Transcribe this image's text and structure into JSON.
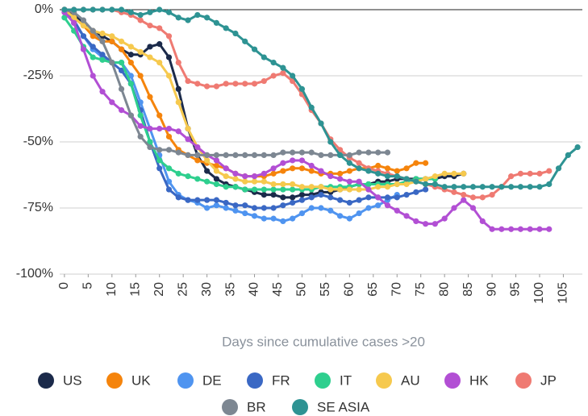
{
  "chart_data": {
    "type": "line",
    "x_label": "Days since cumulative cases >20",
    "x": [
      0,
      2,
      4,
      6,
      8,
      10,
      12,
      14,
      16,
      18,
      20,
      22,
      24,
      26,
      28,
      30,
      32,
      34,
      36,
      38,
      40,
      42,
      44,
      46,
      48,
      50,
      52,
      54,
      56,
      58,
      60,
      62,
      64,
      66,
      68,
      70,
      72,
      74,
      76,
      78,
      80,
      82,
      84,
      86,
      88,
      90,
      92,
      94,
      96,
      98,
      100,
      102,
      104,
      106,
      108
    ],
    "xlim": [
      -1,
      109
    ],
    "xticks": [
      0,
      5,
      10,
      15,
      20,
      25,
      30,
      35,
      40,
      45,
      50,
      55,
      60,
      65,
      70,
      75,
      80,
      85,
      90,
      95,
      100,
      105
    ],
    "ylim": [
      -100,
      0
    ],
    "yticks": [
      {
        "value": -100,
        "label": "-100%"
      },
      {
        "value": -75,
        "label": "-75%"
      },
      {
        "value": -50,
        "label": "-50%"
      },
      {
        "value": -25,
        "label": "-25%"
      },
      {
        "value": 0,
        "label": "0%"
      }
    ],
    "grid": true,
    "series": [
      {
        "name": "US",
        "color": "#1b2a4a",
        "values": [
          0,
          -2,
          -5,
          -8,
          -10,
          -12,
          -15,
          -17,
          -17,
          -14,
          -13,
          -18,
          -30,
          -45,
          -55,
          -61,
          -64,
          -66,
          -67,
          -68,
          -69,
          -70,
          -70,
          -71,
          -71,
          -70,
          -70,
          -69,
          -69,
          -68,
          -67,
          -66,
          -66,
          -65,
          -65,
          -64,
          -64,
          -64,
          -64,
          -64,
          -63,
          -63,
          -62,
          null,
          null,
          null,
          null,
          null,
          null,
          null,
          null,
          null,
          null,
          null,
          null
        ]
      },
      {
        "name": "UK",
        "color": "#f5840c",
        "values": [
          0,
          -3,
          -6,
          -10,
          -12,
          -12,
          -15,
          -20,
          -25,
          -33,
          -40,
          -48,
          -53,
          -55,
          -57,
          -58,
          -59,
          -60,
          -62,
          -63,
          -63,
          -63,
          -62,
          -61,
          -60,
          -60,
          -61,
          -62,
          -62,
          -62,
          -61,
          -60,
          -60,
          -59,
          -60,
          -61,
          -60,
          -58,
          -58,
          null,
          null,
          null,
          null,
          null,
          null,
          null,
          null,
          null,
          null,
          null,
          null,
          null,
          null,
          null,
          null
        ]
      },
      {
        "name": "DE",
        "color": "#4f94f0",
        "values": [
          0,
          -5,
          -10,
          -15,
          -18,
          -20,
          -20,
          -25,
          -35,
          -45,
          -55,
          -65,
          -70,
          -72,
          -73,
          -75,
          -74,
          -75,
          -76,
          -77,
          -78,
          -79,
          -79,
          -80,
          -79,
          -77,
          -75,
          -75,
          -76,
          -78,
          -79,
          -77,
          -75,
          -74,
          -72,
          -70,
          null,
          null,
          null,
          null,
          null,
          null,
          null,
          null,
          null,
          null,
          null,
          null,
          null,
          null,
          null,
          null,
          null,
          null,
          null
        ]
      },
      {
        "name": "FR",
        "color": "#3a68c4",
        "values": [
          0,
          -4,
          -10,
          -14,
          -17,
          -20,
          -23,
          -28,
          -38,
          -50,
          -60,
          -68,
          -71,
          -72,
          -72,
          -72,
          -72,
          -73,
          -74,
          -74,
          -75,
          -75,
          -75,
          -74,
          -73,
          -72,
          -71,
          -70,
          -71,
          -72,
          -73,
          -72,
          -71,
          -71,
          -71,
          -71,
          -70,
          -69,
          -68,
          null,
          null,
          null,
          null,
          null,
          null,
          null,
          null,
          null,
          null,
          null,
          null,
          null,
          null,
          null,
          null
        ]
      },
      {
        "name": "IT",
        "color": "#2ecf8e",
        "values": [
          -3,
          -8,
          -14,
          -18,
          -19,
          -20,
          -20,
          -28,
          -40,
          -50,
          -57,
          -60,
          -62,
          -63,
          -64,
          -65,
          -66,
          -67,
          -67,
          -68,
          -68,
          -68,
          -68,
          -68,
          -68,
          -68,
          -68,
          -67,
          -67,
          -67,
          -67,
          -66,
          -66,
          -66,
          -66,
          -66,
          -65,
          -64,
          -64,
          -64,
          null,
          null,
          null,
          null,
          null,
          null,
          null,
          null,
          null,
          null,
          null,
          null,
          null,
          null,
          null
        ]
      },
      {
        "name": "AU",
        "color": "#f6c94e",
        "values": [
          0,
          -3,
          -6,
          -8,
          -9,
          -10,
          -12,
          -14,
          -16,
          -18,
          -20,
          -25,
          -35,
          -45,
          -52,
          -57,
          -61,
          -63,
          -64,
          -65,
          -65,
          -65,
          -66,
          -66,
          -66,
          -67,
          -67,
          -67,
          -68,
          -68,
          -68,
          -68,
          -68,
          -67,
          -67,
          -66,
          -66,
          -65,
          -64,
          -63,
          -62,
          -62,
          -62,
          null,
          null,
          null,
          null,
          null,
          null,
          null,
          null,
          null,
          null,
          null,
          null
        ]
      },
      {
        "name": "HK",
        "color": "#b24fd4",
        "values": [
          -1,
          -5,
          -15,
          -25,
          -31,
          -35,
          -38,
          -40,
          -44,
          -45,
          -45,
          -45,
          -46,
          -49,
          -52,
          -55,
          -57,
          -60,
          -62,
          -63,
          -63,
          -62,
          -60,
          -58,
          -57,
          -57,
          -59,
          -61,
          -63,
          -64,
          -65,
          -65,
          -68,
          -71,
          -74,
          -76,
          -78,
          -80,
          -81,
          -81,
          -79,
          -75,
          -72,
          -75,
          -80,
          -83,
          -83,
          -83,
          -83,
          -83,
          -83,
          -83,
          null,
          null,
          null
        ]
      },
      {
        "name": "JP",
        "color": "#ef7a72",
        "values": [
          0,
          0,
          0,
          0,
          0,
          0,
          -1,
          -2,
          -4,
          -6,
          -7,
          -10,
          -20,
          -27,
          -28,
          -29,
          -29,
          -28,
          -28,
          -28,
          -28,
          -27,
          -25,
          -24,
          -27,
          -32,
          -38,
          -43,
          -49,
          -53,
          -56,
          -58,
          -60,
          -61,
          -62,
          -63,
          -64,
          -65,
          -66,
          -67,
          -68,
          -69,
          -70,
          -71,
          -71,
          -70,
          -67,
          -63,
          -62,
          -62,
          -62,
          -61,
          null,
          null,
          null
        ]
      },
      {
        "name": "BR",
        "color": "#7d8792",
        "values": [
          0,
          -1,
          -4,
          -8,
          -12,
          -20,
          -30,
          -40,
          -48,
          -52,
          -53,
          -53,
          -54,
          -55,
          -55,
          -55,
          -55,
          -55,
          -55,
          -55,
          -55,
          -55,
          -55,
          -54,
          -54,
          -54,
          -54,
          -55,
          -55,
          -55,
          -55,
          -54,
          -54,
          -54,
          -54,
          null,
          null,
          null,
          null,
          null,
          null,
          null,
          null,
          null,
          null,
          null,
          null,
          null,
          null,
          null,
          null,
          null,
          null,
          null,
          null
        ]
      },
      {
        "name": "SE ASIA",
        "color": "#2e9393",
        "values": [
          0,
          0,
          0,
          0,
          0,
          0,
          0,
          -1,
          -2,
          -1,
          0,
          -1,
          -3,
          -4,
          -2,
          -3,
          -5,
          -7,
          -9,
          -12,
          -15,
          -18,
          -20,
          -22,
          -25,
          -30,
          -37,
          -43,
          -50,
          -55,
          -58,
          -60,
          -61,
          -62,
          -63,
          -63,
          -64,
          -65,
          -66,
          -66,
          -67,
          -67,
          -67,
          -67,
          -67,
          -67,
          -67,
          -67,
          -67,
          -67,
          -67,
          -66,
          -60,
          -55,
          -52
        ]
      }
    ]
  }
}
